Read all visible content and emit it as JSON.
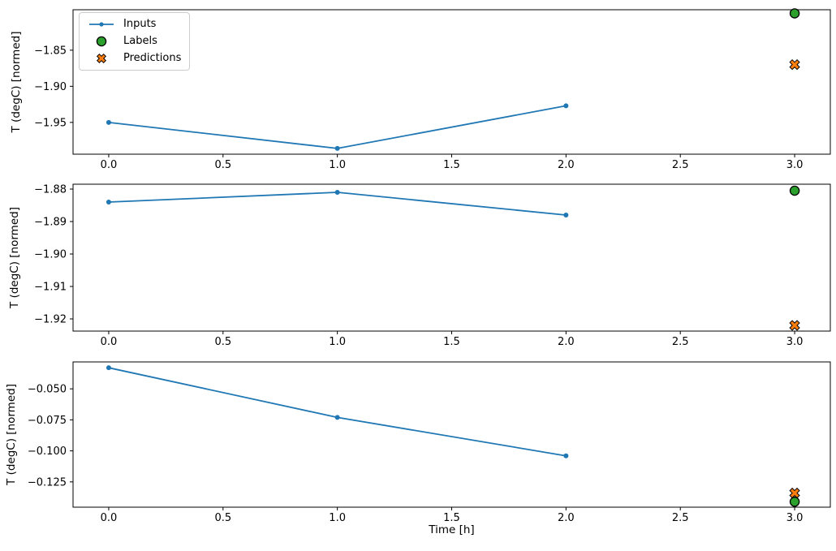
{
  "figure": {
    "background": "#ffffff",
    "text_color": "#000000",
    "spine_color": "#000000"
  },
  "legend": {
    "items": [
      {
        "label": "Inputs",
        "marker": "line-with-dot",
        "color": "#1f77b4"
      },
      {
        "label": "Labels",
        "marker": "filled-circle",
        "color": "#2ca02c"
      },
      {
        "label": "Predictions",
        "marker": "filled-x",
        "color": "#ff7f0e"
      }
    ]
  },
  "chart_data": [
    {
      "type": "line",
      "title": "",
      "xlabel": "",
      "ylabel": "T (degC) [normed]",
      "xlim": [
        -0.156,
        3.156
      ],
      "ylim": [
        -1.994,
        -1.794
      ],
      "grid": false,
      "xticks": [
        0.0,
        0.5,
        1.0,
        1.5,
        2.0,
        2.5,
        3.0
      ],
      "xtick_labels": [
        "0.0",
        "0.5",
        "1.0",
        "1.5",
        "2.0",
        "2.5",
        "3.0"
      ],
      "yticks": [
        -1.85,
        -1.9,
        -1.95
      ],
      "ytick_labels": [
        "−1.85",
        "−1.90",
        "−1.95"
      ],
      "series": [
        {
          "name": "Inputs",
          "kind": "line-dot",
          "color": "#1f77b4",
          "x": [
            0,
            1,
            2
          ],
          "y": [
            -1.95,
            -1.986,
            -1.927
          ]
        },
        {
          "name": "Labels",
          "kind": "circle",
          "color": "#2ca02c",
          "edge": "#000000",
          "x": [
            3
          ],
          "y": [
            -1.799
          ]
        },
        {
          "name": "Predictions",
          "kind": "x",
          "color": "#ff7f0e",
          "edge": "#000000",
          "x": [
            3
          ],
          "y": [
            -1.87
          ]
        }
      ]
    },
    {
      "type": "line",
      "title": "",
      "xlabel": "",
      "ylabel": "T (degC) [normed]",
      "xlim": [
        -0.156,
        3.156
      ],
      "ylim": [
        -1.92375,
        -1.8785
      ],
      "grid": false,
      "xticks": [
        0.0,
        0.5,
        1.0,
        1.5,
        2.0,
        2.5,
        3.0
      ],
      "xtick_labels": [
        "0.0",
        "0.5",
        "1.0",
        "1.5",
        "2.0",
        "2.5",
        "3.0"
      ],
      "yticks": [
        -1.88,
        -1.89,
        -1.9,
        -1.91,
        -1.92
      ],
      "ytick_labels": [
        "−1.88",
        "−1.89",
        "−1.90",
        "−1.91",
        "−1.92"
      ],
      "series": [
        {
          "name": "Inputs",
          "kind": "line-dot",
          "color": "#1f77b4",
          "x": [
            0,
            1,
            2
          ],
          "y": [
            -1.884,
            -1.881,
            -1.888
          ]
        },
        {
          "name": "Labels",
          "kind": "circle",
          "color": "#2ca02c",
          "edge": "#000000",
          "x": [
            3
          ],
          "y": [
            -1.8805
          ]
        },
        {
          "name": "Predictions",
          "kind": "x",
          "color": "#ff7f0e",
          "edge": "#000000",
          "x": [
            3
          ],
          "y": [
            -1.922
          ]
        }
      ]
    },
    {
      "type": "line",
      "title": "",
      "xlabel": "Time [h]",
      "ylabel": "T (degC) [normed]",
      "xlim": [
        -0.156,
        3.156
      ],
      "ylim": [
        -0.1454,
        -0.0283
      ],
      "grid": false,
      "xticks": [
        0.0,
        0.5,
        1.0,
        1.5,
        2.0,
        2.5,
        3.0
      ],
      "xtick_labels": [
        "0.0",
        "0.5",
        "1.0",
        "1.5",
        "2.0",
        "2.5",
        "3.0"
      ],
      "yticks": [
        -0.05,
        -0.075,
        -0.1,
        -0.125
      ],
      "ytick_labels": [
        "−0.050",
        "−0.075",
        "−0.100",
        "−0.125"
      ],
      "series": [
        {
          "name": "Inputs",
          "kind": "line-dot",
          "color": "#1f77b4",
          "x": [
            0,
            1,
            2
          ],
          "y": [
            -0.033,
            -0.073,
            -0.104
          ]
        },
        {
          "name": "Labels",
          "kind": "circle",
          "color": "#2ca02c",
          "edge": "#000000",
          "x": [
            3
          ],
          "y": [
            -0.141
          ]
        },
        {
          "name": "Predictions",
          "kind": "x",
          "color": "#ff7f0e",
          "edge": "#000000",
          "x": [
            3
          ],
          "y": [
            -0.134
          ]
        }
      ]
    }
  ]
}
